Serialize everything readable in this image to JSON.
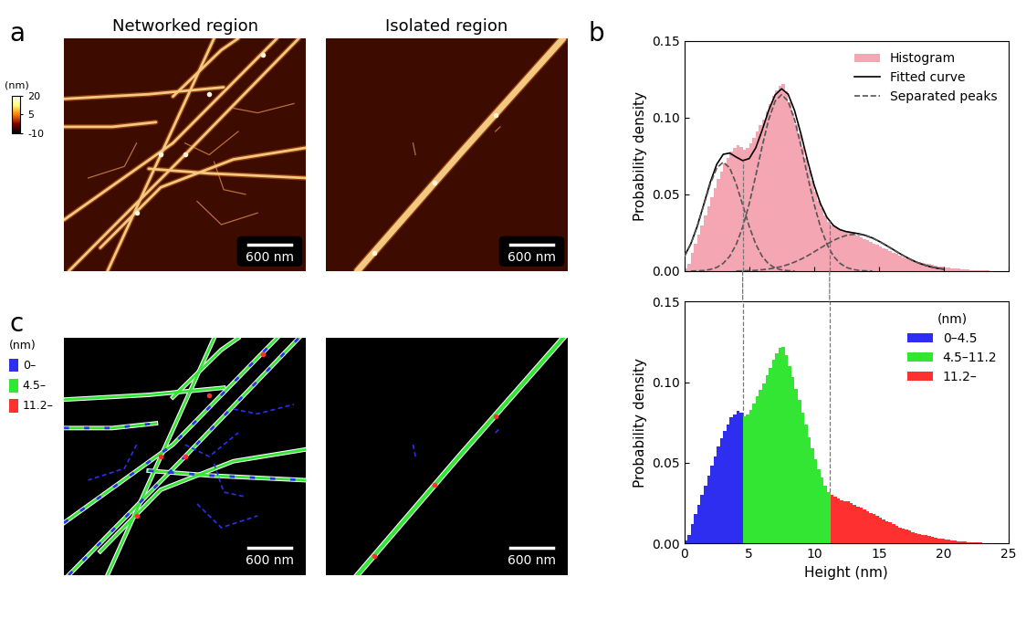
{
  "panel_labels": [
    "a",
    "b",
    "c"
  ],
  "images": {
    "titles": [
      "Networked region",
      "Isolated region"
    ],
    "scale_bar": "600 nm",
    "colorbar": {
      "label": "(nm)",
      "range": [
        -10,
        20
      ],
      "ticks": [
        20,
        5,
        -10
      ]
    },
    "segment_legend": {
      "title": "(nm)",
      "labels": [
        "0–",
        "4.5–",
        "11.2–"
      ],
      "colors": [
        "#2e2ef0",
        "#33e633",
        "#ff3030"
      ]
    }
  },
  "chart_data": [
    {
      "type": "histogram",
      "ylabel": "Probability density",
      "xlim": [
        0,
        25
      ],
      "xticks": [
        0,
        5,
        10,
        15,
        20,
        25
      ],
      "ylim": [
        0,
        0.15
      ],
      "yticks": [
        {
          "value": 0,
          "label": "0.00"
        },
        {
          "value": 0.05,
          "label": "0.05"
        },
        {
          "value": 0.1,
          "label": "0.10"
        },
        {
          "value": 0.15,
          "label": "0.15"
        }
      ],
      "tick_labels": "y",
      "legend": "upper right",
      "series": [
        {
          "name": "Histogram",
          "type": "bar",
          "color": "#f4a6b2",
          "bins": [
            0,
            0.25,
            0.5,
            0.75,
            1,
            1.25,
            1.5,
            1.75,
            2,
            2.25,
            2.5,
            2.75,
            3,
            3.25,
            3.5,
            3.75,
            4,
            4.25,
            4.5,
            4.75,
            5,
            5.25,
            5.5,
            5.75,
            6,
            6.25,
            6.5,
            6.75,
            7,
            7.25,
            7.5,
            7.75,
            8,
            8.25,
            8.5,
            8.75,
            9,
            9.25,
            9.5,
            9.75,
            10,
            10.25,
            10.5,
            10.75,
            11,
            11.25,
            11.5,
            11.75,
            12,
            12.25,
            12.5,
            12.75,
            13,
            13.25,
            13.5,
            13.75,
            14,
            14.25,
            14.5,
            14.75,
            15,
            15.25,
            15.5,
            15.75,
            16,
            16.25,
            16.5,
            16.75,
            17,
            17.25,
            17.5,
            17.75,
            18,
            18.25,
            18.5,
            18.75,
            19,
            19.25,
            19.5,
            19.75,
            20,
            20.25,
            20.5,
            20.75,
            21,
            21.25,
            21.5,
            21.75,
            22,
            22.25,
            22.5,
            22.75,
            23,
            23.25,
            23.5,
            23.75,
            24,
            24.25,
            24.5,
            24.75,
            25
          ],
          "values": [
            0.002,
            0.005,
            0.012,
            0.018,
            0.024,
            0.03,
            0.036,
            0.042,
            0.048,
            0.054,
            0.06,
            0.065,
            0.07,
            0.074,
            0.078,
            0.08,
            0.082,
            0.081,
            0.079,
            0.08,
            0.083,
            0.087,
            0.091,
            0.095,
            0.099,
            0.104,
            0.109,
            0.114,
            0.118,
            0.121,
            0.122,
            0.117,
            0.11,
            0.103,
            0.096,
            0.089,
            0.081,
            0.074,
            0.066,
            0.059,
            0.052,
            0.046,
            0.041,
            0.036,
            0.032,
            0.03,
            0.029,
            0.028,
            0.027,
            0.026,
            0.026,
            0.025,
            0.024,
            0.023,
            0.022,
            0.021,
            0.02,
            0.019,
            0.018,
            0.017,
            0.016,
            0.015,
            0.014,
            0.013,
            0.012,
            0.011,
            0.01,
            0.009,
            0.0085,
            0.008,
            0.007,
            0.0065,
            0.006,
            0.0055,
            0.005,
            0.0045,
            0.004,
            0.0035,
            0.003,
            0.0028,
            0.0025,
            0.0022,
            0.002,
            0.0018,
            0.0015,
            0.0013,
            0.0011,
            0.001,
            0.0008,
            0.0007,
            0.0006,
            0.0005,
            0.0004,
            0.0003,
            0.0002,
            0.0002,
            0.0001,
            0.0001,
            0.0001,
            0
          ]
        },
        {
          "name": "Fitted curve",
          "type": "line",
          "color": "#000000",
          "line_style": "solid",
          "x": [
            0,
            0.5,
            1,
            1.5,
            2,
            2.5,
            3,
            3.5,
            4,
            4.5,
            5,
            5.5,
            6,
            6.5,
            7,
            7.5,
            8,
            8.5,
            9,
            9.5,
            10,
            10.5,
            11,
            11.5,
            12,
            12.5,
            13,
            13.5,
            14,
            14.5,
            15,
            15.5,
            16,
            16.5,
            17,
            17.5,
            18,
            18.5,
            19,
            19.5,
            20
          ],
          "values": [
            0.0096,
            0.0178,
            0.0294,
            0.0435,
            0.0579,
            0.0696,
            0.0761,
            0.0769,
            0.0743,
            0.072,
            0.0733,
            0.0802,
            0.0918,
            0.1047,
            0.1148,
            0.1188,
            0.1153,
            0.1046,
            0.0891,
            0.072,
            0.0563,
            0.0438,
            0.035,
            0.0297,
            0.027,
            0.0257,
            0.025,
            0.0243,
            0.0232,
            0.0216,
            0.0195,
            0.0171,
            0.0146,
            0.012,
            0.0096,
            0.0074,
            0.0055,
            0.004,
            0.0028,
            0.0019,
            0.0013
          ]
        },
        {
          "name": "Separated peaks",
          "type": "line",
          "color": "#555555",
          "line_style": "dashed",
          "x": [
            0,
            0.5,
            1,
            1.5,
            2,
            2.5,
            3,
            3.5,
            4,
            4.5,
            5,
            5.5,
            6,
            6.5,
            7,
            7.5,
            8,
            8.5,
            9,
            9.5,
            10,
            10.5,
            11,
            11.5,
            12,
            12.5,
            13,
            13.5,
            14,
            14.5,
            15,
            15.5,
            16,
            16.5,
            17,
            17.5,
            18,
            18.5,
            19,
            19.5,
            20
          ],
          "values": [
            [
              0.0096,
              0.0177,
              0.0292,
              0.0431,
              0.0568,
              0.0672,
              0.071,
              0.0672,
              0.0568,
              0.0431,
              0.0292,
              0.0177,
              0.0096,
              0.0047,
              0.002,
              0.0008,
              0.0003,
              0.0001,
              null,
              null,
              null,
              null,
              null,
              null,
              null,
              null,
              null,
              null,
              null,
              null,
              null,
              null,
              null,
              null,
              null,
              null,
              null,
              null,
              null,
              null,
              null
            ],
            [
              null,
              0.0001,
              0.0002,
              0.0004,
              0.0011,
              0.0024,
              0.0051,
              0.0097,
              0.0174,
              0.0287,
              0.0438,
              0.062,
              0.0813,
              0.0986,
              0.1107,
              0.115,
              0.1107,
              0.0986,
              0.0813,
              0.062,
              0.0438,
              0.0287,
              0.0174,
              0.0097,
              0.0051,
              0.0024,
              0.0011,
              0.0004,
              0.0002,
              0.0001,
              null,
              null,
              null,
              null,
              null,
              null,
              null,
              null,
              null,
              null,
              null
            ],
            [
              null,
              null,
              null,
              null,
              null,
              null,
              null,
              null,
              0.0001,
              0.0002,
              0.0003,
              0.0005,
              0.0009,
              0.0014,
              0.0021,
              0.003,
              0.0043,
              0.0059,
              0.0078,
              0.01,
              0.0125,
              0.0151,
              0.0176,
              0.02,
              0.0219,
              0.0233,
              0.0239,
              0.0239,
              0.023,
              0.0215,
              0.0195,
              0.0171,
              0.0146,
              0.012,
              0.0096,
              0.0074,
              0.0055,
              0.004,
              0.0028,
              0.0019,
              0.0013
            ]
          ]
        }
      ]
    },
    {
      "type": "histogram",
      "xlabel": "Height (nm)",
      "ylabel": "Probability density",
      "xlim": [
        0,
        25
      ],
      "xticks": [
        0,
        5,
        10,
        15,
        20,
        25
      ],
      "ylim": [
        0,
        0.15
      ],
      "yticks": [
        {
          "value": 0,
          "label": "0.00"
        },
        {
          "value": 0.05,
          "label": "0.05"
        },
        {
          "value": 0.1,
          "label": "0.10"
        },
        {
          "value": 0.15,
          "label": "0.15"
        }
      ],
      "legend": "upper right",
      "legend_title": "(nm)",
      "thresholds": [
        4.5,
        11.2
      ],
      "bins": [
        0,
        0.25,
        0.5,
        0.75,
        1,
        1.25,
        1.5,
        1.75,
        2,
        2.25,
        2.5,
        2.75,
        3,
        3.25,
        3.5,
        3.75,
        4,
        4.25,
        4.5,
        4.75,
        5,
        5.25,
        5.5,
        5.75,
        6,
        6.25,
        6.5,
        6.75,
        7,
        7.25,
        7.5,
        7.75,
        8,
        8.25,
        8.5,
        8.75,
        9,
        9.25,
        9.5,
        9.75,
        10,
        10.25,
        10.5,
        10.75,
        11,
        11.25,
        11.5,
        11.75,
        12,
        12.25,
        12.5,
        12.75,
        13,
        13.25,
        13.5,
        13.75,
        14,
        14.25,
        14.5,
        14.75,
        15,
        15.25,
        15.5,
        15.75,
        16,
        16.25,
        16.5,
        16.75,
        17,
        17.25,
        17.5,
        17.75,
        18,
        18.25,
        18.5,
        18.75,
        19,
        19.25,
        19.5,
        19.75,
        20,
        20.25,
        20.5,
        20.75,
        21,
        21.25,
        21.5,
        21.75,
        22,
        22.25,
        22.5,
        22.75,
        23,
        23.25,
        23.5,
        23.75,
        24,
        24.25,
        24.5,
        24.75,
        25
      ],
      "values": [
        0.002,
        0.005,
        0.012,
        0.018,
        0.024,
        0.03,
        0.036,
        0.042,
        0.048,
        0.054,
        0.06,
        0.065,
        0.07,
        0.074,
        0.078,
        0.08,
        0.082,
        0.081,
        0.079,
        0.08,
        0.083,
        0.087,
        0.091,
        0.095,
        0.099,
        0.104,
        0.109,
        0.114,
        0.118,
        0.121,
        0.122,
        0.117,
        0.11,
        0.103,
        0.096,
        0.089,
        0.081,
        0.074,
        0.066,
        0.059,
        0.052,
        0.046,
        0.041,
        0.036,
        0.032,
        0.03,
        0.029,
        0.028,
        0.027,
        0.026,
        0.026,
        0.025,
        0.024,
        0.023,
        0.022,
        0.021,
        0.02,
        0.019,
        0.018,
        0.017,
        0.016,
        0.015,
        0.014,
        0.013,
        0.012,
        0.011,
        0.01,
        0.009,
        0.0085,
        0.008,
        0.007,
        0.0065,
        0.006,
        0.0055,
        0.005,
        0.0045,
        0.004,
        0.0035,
        0.003,
        0.0028,
        0.0025,
        0.0022,
        0.002,
        0.0018,
        0.0015,
        0.0013,
        0.0011,
        0.001,
        0.0008,
        0.0007,
        0.0006,
        0.0005,
        0.0004,
        0.0003,
        0.0002,
        0.0002,
        0.0001,
        0.0001,
        0.0001,
        0
      ],
      "series": [
        {
          "name": "0–4.5",
          "color": "#2e2ef0"
        },
        {
          "name": "4.5–11.2",
          "color": "#33e633"
        },
        {
          "name": "11.2–",
          "color": "#ff3030"
        }
      ]
    }
  ]
}
